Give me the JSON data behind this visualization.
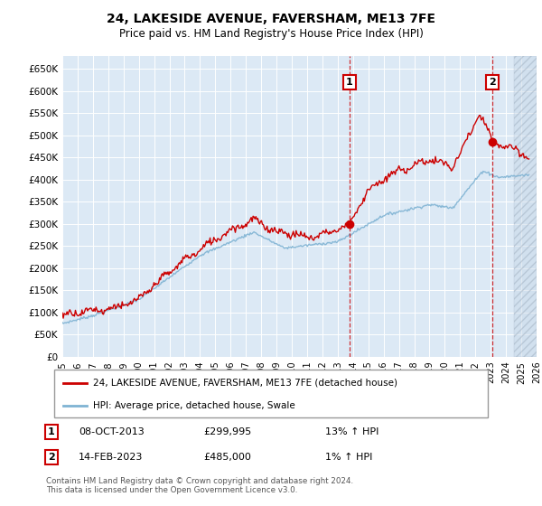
{
  "title": "24, LAKESIDE AVENUE, FAVERSHAM, ME13 7FE",
  "subtitle": "Price paid vs. HM Land Registry's House Price Index (HPI)",
  "hpi_color": "#7fb3d3",
  "price_color": "#cc0000",
  "marker_color": "#cc0000",
  "background_color": "#dce9f5",
  "ylim": [
    0,
    680000
  ],
  "yticks": [
    0,
    50000,
    100000,
    150000,
    200000,
    250000,
    300000,
    350000,
    400000,
    450000,
    500000,
    550000,
    600000,
    650000
  ],
  "ytick_labels": [
    "£0",
    "£50K",
    "£100K",
    "£150K",
    "£200K",
    "£250K",
    "£300K",
    "£350K",
    "£400K",
    "£450K",
    "£500K",
    "£550K",
    "£600K",
    "£650K"
  ],
  "sale1_x": 2013.77,
  "sale1_y": 299995,
  "sale2_x": 2023.12,
  "sale2_y": 485000,
  "sale1_date": "08-OCT-2013",
  "sale1_price": "£299,995",
  "sale1_hpi": "13% ↑ HPI",
  "sale2_date": "14-FEB-2023",
  "sale2_price": "£485,000",
  "sale2_hpi": "1% ↑ HPI",
  "legend_line1": "24, LAKESIDE AVENUE, FAVERSHAM, ME13 7FE (detached house)",
  "legend_line2": "HPI: Average price, detached house, Swale",
  "footer": "Contains HM Land Registry data © Crown copyright and database right 2024.\nThis data is licensed under the Open Government Licence v3.0.",
  "xmin": 1995,
  "xmax": 2026
}
